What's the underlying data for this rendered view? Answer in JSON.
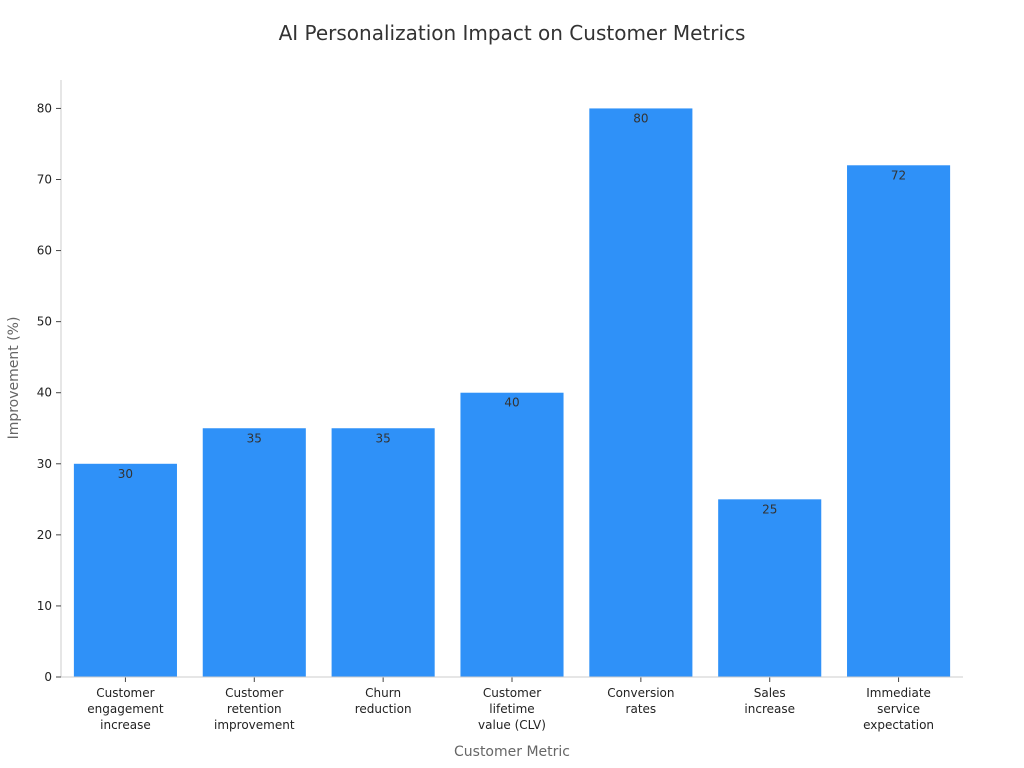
{
  "chart_data": {
    "type": "bar",
    "title": "AI Personalization Impact on Customer Metrics",
    "xlabel": "Customer Metric",
    "ylabel": "Improvement (%)",
    "ylim": [
      0,
      84
    ],
    "yticks": [
      0,
      10,
      20,
      30,
      40,
      50,
      60,
      70,
      80
    ],
    "categories": [
      "Customer engagement increase",
      "Customer retention improvement",
      "Churn reduction",
      "Customer lifetime value (CLV)",
      "Conversion rates",
      "Sales increase",
      "Immediate service expectation"
    ],
    "category_lines": [
      [
        "Customer",
        "engagement",
        "increase"
      ],
      [
        "Customer",
        "retention",
        "improvement"
      ],
      [
        "Churn",
        "reduction"
      ],
      [
        "Customer",
        "lifetime",
        "value (CLV)"
      ],
      [
        "Conversion",
        "rates"
      ],
      [
        "Sales",
        "increase"
      ],
      [
        "Immediate",
        "service",
        "expectation"
      ]
    ],
    "values": [
      30,
      35,
      35,
      40,
      80,
      25,
      72
    ],
    "bar_color": "#2f91f8",
    "grid": false,
    "legend": "none"
  }
}
